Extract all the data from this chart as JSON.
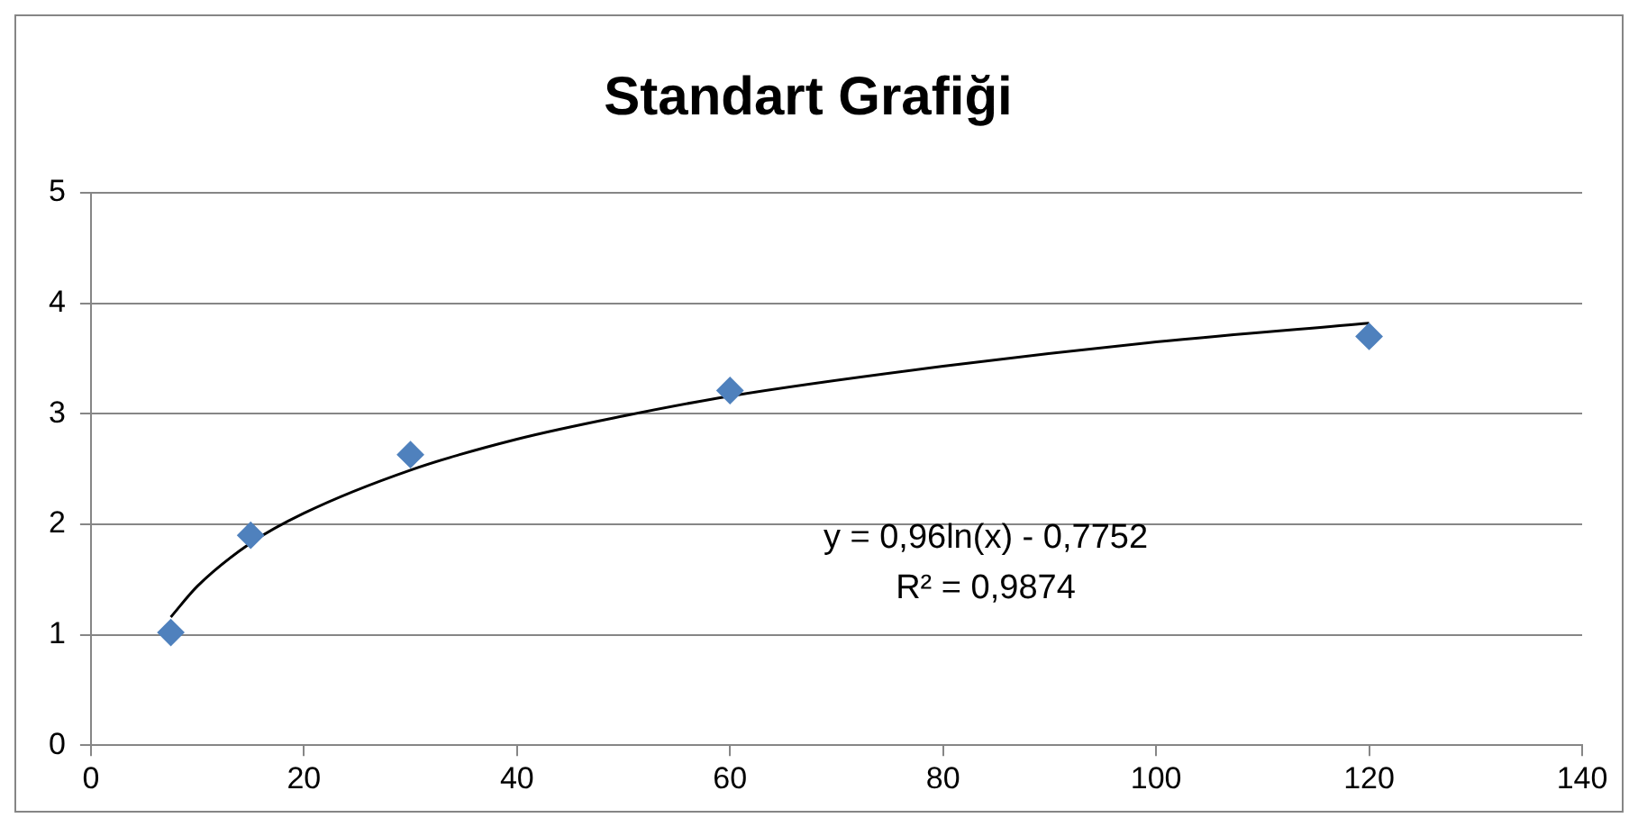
{
  "chart_data": {
    "type": "scatter",
    "title": "Standart Grafiği",
    "xlim": [
      0,
      140
    ],
    "xticks": [
      0,
      20,
      40,
      60,
      80,
      100,
      120,
      140
    ],
    "ylim": [
      0,
      5
    ],
    "yticks": [
      0,
      1,
      2,
      3,
      4,
      5
    ],
    "grid": "y",
    "legend": false,
    "series": [
      {
        "color": "#4f81bd",
        "marker": "diamond",
        "x": [
          7.5,
          15,
          30,
          60,
          120
        ],
        "values": [
          1.02,
          1.9,
          2.63,
          3.21,
          3.7
        ]
      },
      {
        "type": "line",
        "color": "#000000",
        "marker": "none",
        "x": [
          7.5,
          10,
          15,
          20,
          30,
          40,
          50,
          60,
          80,
          100,
          120
        ],
        "values": [
          1.16,
          1.44,
          1.83,
          2.1,
          2.49,
          2.77,
          2.98,
          3.16,
          3.43,
          3.65,
          3.82
        ]
      }
    ],
    "annotations": [
      "y = 0,96ln(x) - 0,7752",
      "R² = 0,9874"
    ]
  }
}
